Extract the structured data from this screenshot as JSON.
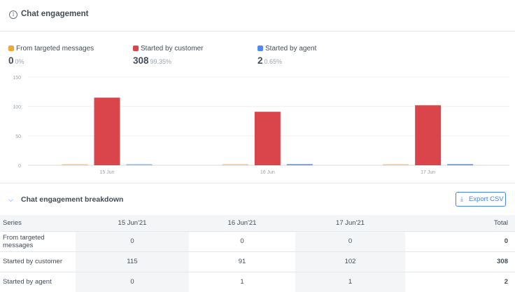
{
  "header": {
    "title": "Chat engagement",
    "info_icon": "info-icon"
  },
  "legend": [
    {
      "label": "From targeted messages",
      "color": "#f5a535",
      "value": "0",
      "pct": "0%"
    },
    {
      "label": "Started by customer",
      "color": "#d9454a",
      "value": "308",
      "pct": "99.35%"
    },
    {
      "label": "Started by agent",
      "color": "#4a8af4",
      "value": "2",
      "pct": "0.65%"
    }
  ],
  "chart_data": {
    "type": "bar",
    "categories": [
      "15 Jun",
      "16 Jun",
      "17 Jun"
    ],
    "series": [
      {
        "name": "From targeted messages",
        "color": "#f5a535",
        "values": [
          0,
          0,
          0
        ]
      },
      {
        "name": "Started by customer",
        "color": "#d9454a",
        "values": [
          115,
          91,
          102
        ]
      },
      {
        "name": "Started by agent",
        "color": "#4a8af4",
        "values": [
          0,
          1,
          1
        ]
      }
    ],
    "yticks": [
      "0",
      "50",
      "100",
      "150"
    ],
    "ylim": [
      0,
      150
    ],
    "grid": true
  },
  "breakdown": {
    "title": "Chat engagement breakdown",
    "export_label": "Export CSV",
    "columns": [
      "Series",
      "15 Jun'21",
      "16 Jun'21",
      "17 Jun'21",
      "Total"
    ],
    "rows": [
      [
        "From targeted messages",
        "0",
        "0",
        "0",
        "0"
      ],
      [
        "Started by customer",
        "115",
        "91",
        "102",
        "308"
      ],
      [
        "Started by agent",
        "0",
        "1",
        "1",
        "2"
      ]
    ]
  }
}
